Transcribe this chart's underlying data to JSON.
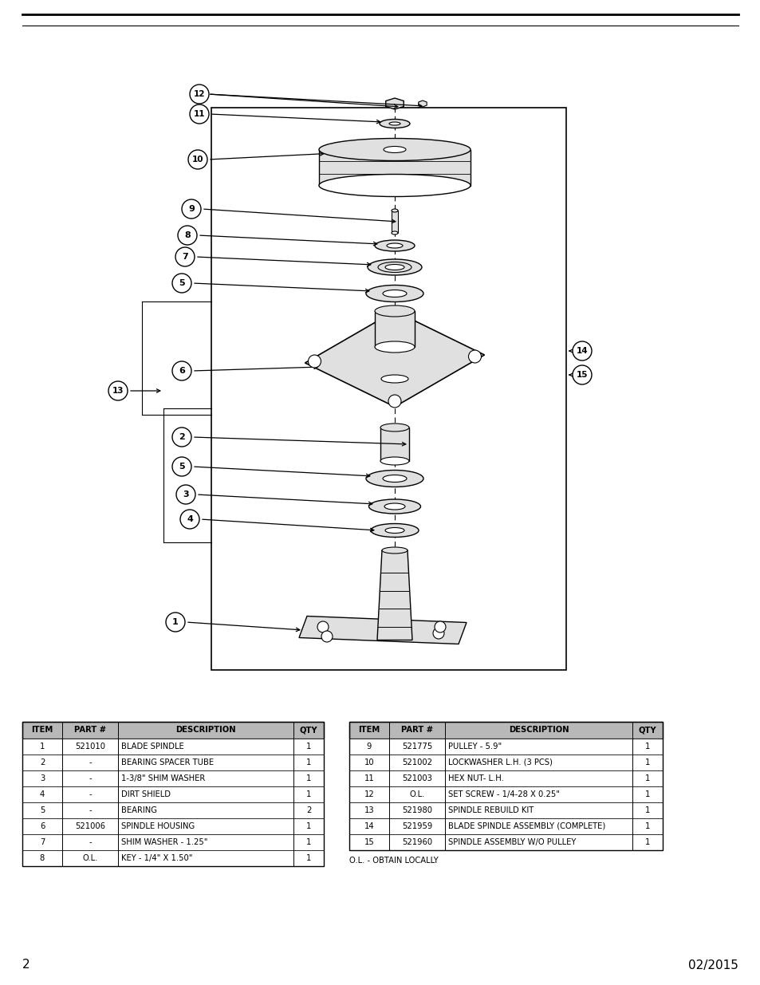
{
  "page_number": "2",
  "date": "02/2015",
  "background_color": "#ffffff",
  "line_color": "#000000",
  "gray_fill": "#c8c8c8",
  "light_gray": "#e0e0e0",
  "left_table": {
    "headers": [
      "ITEM",
      "PART #",
      "DESCRIPTION",
      "QTY"
    ],
    "rows": [
      [
        "1",
        "521010",
        "BLADE SPINDLE",
        "1"
      ],
      [
        "2",
        "-",
        "BEARING SPACER TUBE",
        "1"
      ],
      [
        "3",
        "-",
        "1-3/8\" SHIM WASHER",
        "1"
      ],
      [
        "4",
        "-",
        "DIRT SHIELD",
        "1"
      ],
      [
        "5",
        "-",
        "BEARING",
        "2"
      ],
      [
        "6",
        "521006",
        "SPINDLE HOUSING",
        "1"
      ],
      [
        "7",
        "-",
        "SHIM WASHER - 1.25\"",
        "1"
      ],
      [
        "8",
        "O.L.",
        "KEY - 1/4\" X 1.50\"",
        "1"
      ]
    ]
  },
  "right_table": {
    "headers": [
      "ITEM",
      "PART #",
      "DESCRIPTION",
      "QTY"
    ],
    "rows": [
      [
        "9",
        "521775",
        "PULLEY - 5.9\"",
        "1"
      ],
      [
        "10",
        "521002",
        "LOCKWASHER L.H. (3 PCS)",
        "1"
      ],
      [
        "11",
        "521003",
        "HEX NUT- L.H.",
        "1"
      ],
      [
        "12",
        "O.L.",
        "SET SCREW - 1/4-28 X 0.25\"",
        "1"
      ],
      [
        "13",
        "521980",
        "SPINDLE REBUILD KIT",
        "1"
      ],
      [
        "14",
        "521959",
        "BLADE SPINDLE ASSEMBLY (COMPLETE)",
        "1"
      ],
      [
        "15",
        "521960",
        "SPINDLE ASSEMBLY W/O PULLEY",
        "1"
      ]
    ]
  },
  "ol_note": "O.L. - OBTAIN LOCALLY"
}
